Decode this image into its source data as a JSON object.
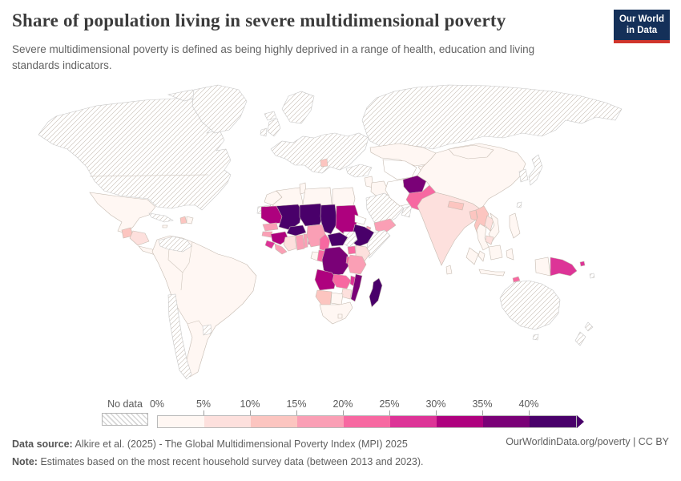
{
  "header": {
    "title": "Share of population living in severe multidimensional poverty",
    "subtitle": "Severe multidimensional poverty is defined as being highly deprived in a range of health, education and living standards indicators.",
    "logo": {
      "line1": "Our World",
      "line2": "in Data",
      "bg_color": "#143059",
      "accent_color": "#d0352c"
    }
  },
  "chart_data": {
    "type": "choropleth_map",
    "title": "Share of population living in severe multidimensional poverty",
    "unit": "% of population",
    "legend": {
      "no_data_label": "No data",
      "tick_labels": [
        "0%",
        "5%",
        "10%",
        "15%",
        "20%",
        "25%",
        "30%",
        "35%",
        "40%"
      ],
      "bins": [
        {
          "label": "0-5%",
          "color": "#fff7f3"
        },
        {
          "label": "5-10%",
          "color": "#fde0dd"
        },
        {
          "label": "10-15%",
          "color": "#fcc5c0"
        },
        {
          "label": "15-20%",
          "color": "#fa9fb5"
        },
        {
          "label": "20-25%",
          "color": "#f768a1"
        },
        {
          "label": "25-30%",
          "color": "#dd3497"
        },
        {
          "label": "30-35%",
          "color": "#ae017e"
        },
        {
          "label": "35-40%",
          "color": "#7a0177"
        },
        {
          "label": "40%+",
          "color": "#49006a"
        }
      ],
      "arrow_cap": true
    },
    "regions": {
      "north-america": "no-data",
      "arctic-islands": "no-data",
      "greenland": "no-data",
      "iceland": "no-data",
      "united-kingdom": "no-data",
      "ireland": "no-data",
      "scandinavia": "no-data",
      "europe": "no-data",
      "russia": "no-data",
      "turkey": "no-data",
      "saudi-arabia": "no-data",
      "oman": "no-data",
      "western-sahara": "no-data",
      "somalia": "no-data",
      "south-sudan": "no-data",
      "cuba": "no-data",
      "venezuela": "no-data",
      "chile": "no-data",
      "uruguay": "no-data",
      "japan": "no-data",
      "korea": "no-data",
      "taiwan": "no-data",
      "australia": "no-data",
      "tasmania": "no-data",
      "new-zealand": "no-data",
      "solomon-islands": "no-data",
      "iran": "unshaded",
      "central-asia": "unshaded",
      "eritrea": "unshaded",
      "mexico": "0-5%",
      "costa-rica-panama": "0-5%",
      "jamaica": "0-5%",
      "dominican-republic": "0-5%",
      "south-america": "0-5%",
      "morocco": "0-5%",
      "algeria": "0-5%",
      "tunisia": "0-5%",
      "libya": "0-5%",
      "egypt": "0-5%",
      "levant": "0-5%",
      "iraq": "0-5%",
      "kazakhstan": "0-5%",
      "kyrgyzstan-tajikistan": "0-5%",
      "china": "0-5%",
      "mongolia": "0-5%",
      "thailand": "0-5%",
      "vietnam": "0-5%",
      "malaysia": "0-5%",
      "philippines": "0-5%",
      "indonesia": "0-5%",
      "sri-lanka": "0-5%",
      "gabon": "0-5%",
      "botswana": "0-5%",
      "south-africa": "0-5%",
      "lesotho": "0-5%",
      "honduras-nicaragua": "5-10%",
      "india": "5-10%",
      "laos": "5-10%",
      "cambodia": "5-10%",
      "cote-divoire": "5-10%",
      "kenya": "5-10%",
      "zimbabwe": "5-10%",
      "guatemala": "10-15%",
      "haiti": "10-15%",
      "nepal": "10-15%",
      "bangladesh": "10-15%",
      "myanmar": "10-15%",
      "namibia": "10-15%",
      "balkans": "10-15%",
      "senegal": "15-20%",
      "gambia-guinea-bissau": "15-20%",
      "liberia": "15-20%",
      "ghana": "15-20%",
      "togo": "15-20%",
      "nigeria": "15-20%",
      "tanzania": "15-20%",
      "yemen": "15-20%",
      "djibouti": "15-20%",
      "pakistan": "20-25%",
      "cameroon": "20-25%",
      "congo": "20-25%",
      "uganda": "20-25%",
      "zambia": "20-25%",
      "rwanda-burundi": "20-25%",
      "timor-leste": "20-25%",
      "sierra-leone": "25-30%",
      "benin": "25-30%",
      "papua-new-guinea": "25-30%",
      "png-islands": "25-30%",
      "malawi": "25-30%",
      "mauritania": "30-35%",
      "guinea": "30-35%",
      "sudan": "30-35%",
      "angola": "30-35%",
      "afghanistan": "35-40%",
      "drc": "35-40%",
      "mozambique": "35-40%",
      "mali": "40%+",
      "niger": "40%+",
      "chad": "40%+",
      "burkina-faso": "40%+",
      "central-african-republic": "40%+",
      "ethiopia": "40%+",
      "madagascar": "40%+"
    }
  },
  "footer": {
    "source_label": "Data source:",
    "source_text": "Alkire et al. (2025) - The Global Multidimensional Poverty Index (MPI) 2025",
    "note_label": "Note:",
    "note_text": "Estimates based on the most recent household survey data (between 2013 and 2023).",
    "credit": "OurWorldinData.org/poverty | CC BY"
  }
}
